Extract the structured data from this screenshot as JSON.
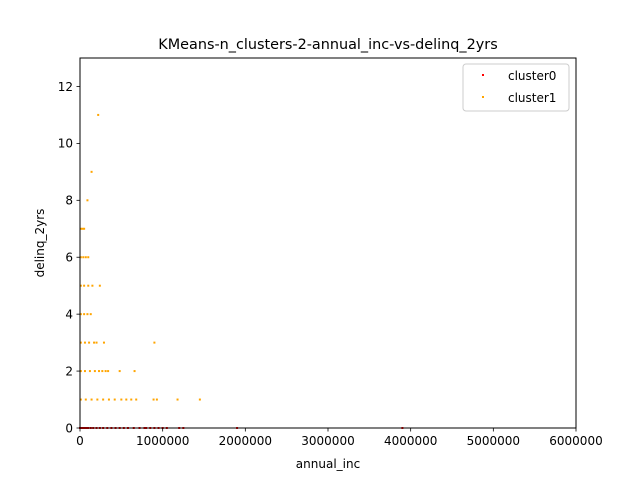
{
  "chart_data": {
    "type": "scatter",
    "title": "KMeans-n_clusters-2-annual_inc-vs-delinq_2yrs",
    "xlabel": "annual_inc",
    "ylabel": "delinq_2yrs",
    "xlim": [
      0,
      6000000
    ],
    "ylim": [
      0,
      13
    ],
    "xticks": [
      0,
      1000000,
      2000000,
      3000000,
      4000000,
      5000000,
      6000000
    ],
    "xtick_labels": [
      "0",
      "1000000",
      "2000000",
      "3000000",
      "4000000",
      "5000000",
      "6000000"
    ],
    "yticks": [
      0,
      2,
      4,
      6,
      8,
      10,
      12
    ],
    "ytick_labels": [
      "0",
      "2",
      "4",
      "6",
      "8",
      "10",
      "12"
    ],
    "grid": false,
    "legend_position": "top-right",
    "series": [
      {
        "name": "cluster0",
        "color": "#ff0000",
        "points": [
          [
            0,
            0
          ],
          [
            20000,
            0
          ],
          [
            40000,
            0
          ],
          [
            60000,
            0
          ],
          [
            80000,
            0
          ],
          [
            100000,
            0
          ],
          [
            130000,
            0
          ],
          [
            160000,
            0
          ],
          [
            200000,
            0
          ],
          [
            240000,
            0
          ],
          [
            280000,
            0
          ],
          [
            330000,
            0
          ],
          [
            380000,
            0
          ],
          [
            430000,
            0
          ],
          [
            480000,
            0
          ],
          [
            530000,
            0
          ],
          [
            580000,
            0
          ],
          [
            650000,
            0
          ],
          [
            720000,
            0
          ],
          [
            780000,
            0
          ],
          [
            800000,
            0
          ],
          [
            850000,
            0
          ],
          [
            900000,
            0
          ],
          [
            950000,
            0
          ],
          [
            1000000,
            0
          ],
          [
            1050000,
            0
          ],
          [
            1200000,
            0
          ],
          [
            1250000,
            0
          ],
          [
            1900000,
            0
          ],
          [
            3900000,
            0
          ]
        ]
      },
      {
        "name": "cluster1",
        "color": "#ffa500",
        "points": [
          [
            220000,
            11
          ],
          [
            140000,
            9
          ],
          [
            90000,
            8
          ],
          [
            10000,
            7
          ],
          [
            30000,
            7
          ],
          [
            50000,
            7
          ],
          [
            10000,
            6
          ],
          [
            40000,
            6
          ],
          [
            70000,
            6
          ],
          [
            100000,
            6
          ],
          [
            10000,
            5
          ],
          [
            50000,
            5
          ],
          [
            100000,
            5
          ],
          [
            150000,
            5
          ],
          [
            240000,
            5
          ],
          [
            10000,
            4
          ],
          [
            50000,
            4
          ],
          [
            90000,
            4
          ],
          [
            130000,
            4
          ],
          [
            10000,
            3
          ],
          [
            60000,
            3
          ],
          [
            110000,
            3
          ],
          [
            170000,
            3
          ],
          [
            200000,
            3
          ],
          [
            290000,
            3
          ],
          [
            900000,
            3
          ],
          [
            10000,
            2
          ],
          [
            60000,
            2
          ],
          [
            120000,
            2
          ],
          [
            180000,
            2
          ],
          [
            230000,
            2
          ],
          [
            270000,
            2
          ],
          [
            310000,
            2
          ],
          [
            340000,
            2
          ],
          [
            480000,
            2
          ],
          [
            660000,
            2
          ],
          [
            10000,
            1
          ],
          [
            70000,
            1
          ],
          [
            140000,
            1
          ],
          [
            210000,
            1
          ],
          [
            280000,
            1
          ],
          [
            350000,
            1
          ],
          [
            420000,
            1
          ],
          [
            500000,
            1
          ],
          [
            560000,
            1
          ],
          [
            620000,
            1
          ],
          [
            680000,
            1
          ],
          [
            890000,
            1
          ],
          [
            930000,
            1
          ],
          [
            1180000,
            1
          ],
          [
            1450000,
            1
          ]
        ]
      }
    ]
  }
}
